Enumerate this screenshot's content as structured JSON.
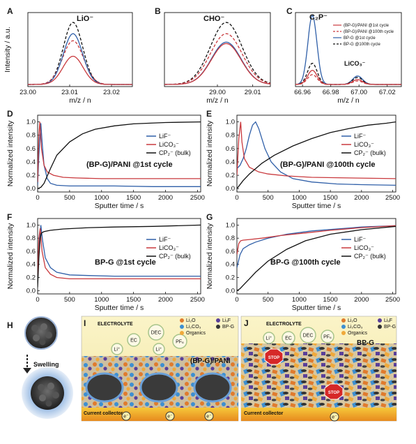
{
  "figure": {
    "panel_letters": [
      "A",
      "B",
      "C",
      "D",
      "E",
      "F",
      "G",
      "H",
      "I",
      "J"
    ]
  },
  "colors": {
    "red": "#c9393d",
    "blue": "#2f5fa8",
    "black": "#111111"
  },
  "chart_data": [
    {
      "id": "A",
      "type": "line",
      "xlabel": "m/z / n",
      "ylabel": "Intensity / a.u.",
      "xlim": [
        23.0,
        23.025
      ],
      "ylim": [
        0,
        1.05
      ],
      "xticks": [
        "23.00",
        "23.01",
        "23.02"
      ],
      "xtick_values": [
        23.0,
        23.01,
        23.02
      ],
      "annotation": "LiO⁻",
      "series": [
        {
          "color": "#111111",
          "dash": true,
          "center": 23.0108,
          "width": 0.0023,
          "peak": 0.88
        },
        {
          "color": "#c9393d",
          "dash": true,
          "center": 23.0108,
          "width": 0.0025,
          "peak": 0.62
        },
        {
          "color": "#2f5fa8",
          "dash": false,
          "center": 23.0108,
          "width": 0.0023,
          "peak": 0.72
        },
        {
          "color": "#c9393d",
          "dash": false,
          "center": 23.0108,
          "width": 0.0024,
          "peak": 0.4
        }
      ]
    },
    {
      "id": "B",
      "type": "line",
      "xlabel": "m/z / n",
      "ylabel": "",
      "xlim": [
        28.985,
        29.015
      ],
      "ylim": [
        0,
        1.05
      ],
      "xticks": [
        "29.00",
        "29.01"
      ],
      "xtick_values": [
        29.0,
        29.01
      ],
      "annotation": "CHO⁻",
      "series": [
        {
          "color": "#111111",
          "dash": true,
          "center": 29.0025,
          "width": 0.0045,
          "peak": 0.88
        },
        {
          "color": "#c9393d",
          "dash": true,
          "center": 29.0025,
          "width": 0.0045,
          "peak": 0.72
        },
        {
          "color": "#2f5fa8",
          "dash": false,
          "center": 29.0025,
          "width": 0.0042,
          "peak": 0.6
        },
        {
          "color": "#c9393d",
          "dash": false,
          "center": 29.0025,
          "width": 0.0042,
          "peak": 0.58
        }
      ]
    },
    {
      "id": "C",
      "type": "line",
      "xlabel": "m/z / n",
      "ylabel": "",
      "xlim": [
        66.955,
        67.03
      ],
      "ylim": [
        0,
        1.05
      ],
      "xticks": [
        "66.96",
        "66.98",
        "67.00",
        "67.02"
      ],
      "xtick_values": [
        66.96,
        66.98,
        67.0,
        67.02
      ],
      "annotation": "C₂P⁻",
      "annotation2": "LiCO₃⁻",
      "legend": [
        {
          "label": "(BP-G)/PANI @1st cycle",
          "color": "#c9393d",
          "dash": false
        },
        {
          "label": "(BP-G)/PANI @100th cycle",
          "color": "#c9393d",
          "dash": true
        },
        {
          "label": "BP-G @1st cycle",
          "color": "#2f5fa8",
          "dash": false
        },
        {
          "label": "BP-G @100th cycle",
          "color": "#111111",
          "dash": true
        }
      ],
      "series": [
        {
          "color": "#2f5fa8",
          "dash": false,
          "peaks": [
            [
              66.967,
              0.0032,
              0.98
            ],
            [
              66.999,
              0.0035,
              0.12
            ]
          ]
        },
        {
          "color": "#111111",
          "dash": true,
          "peaks": [
            [
              66.967,
              0.0034,
              0.3
            ],
            [
              66.999,
              0.0035,
              0.1
            ]
          ]
        },
        {
          "color": "#c9393d",
          "dash": false,
          "peaks": [
            [
              66.967,
              0.0034,
              0.2
            ],
            [
              66.999,
              0.0035,
              0.07
            ]
          ]
        },
        {
          "color": "#c9393d",
          "dash": true,
          "peaks": [
            [
              66.967,
              0.0034,
              0.14
            ],
            [
              66.999,
              0.0035,
              0.05
            ]
          ]
        }
      ]
    },
    {
      "id": "D",
      "type": "line",
      "xlabel": "Sputter time / s",
      "ylabel": "Normalized intensity",
      "xlim": [
        0,
        2550
      ],
      "ylim": [
        -0.05,
        1.1
      ],
      "xticks": [
        "0",
        "500",
        "1000",
        "1500",
        "2000",
        "2500"
      ],
      "xtick_values": [
        0,
        500,
        1000,
        1500,
        2000,
        2500
      ],
      "yticks": [
        "0.0",
        "0.2",
        "0.4",
        "0.6",
        "0.8",
        "1.0"
      ],
      "ytick_values": [
        0,
        0.2,
        0.4,
        0.6,
        0.8,
        1.0
      ],
      "annotation": "(BP-G)/PANI @1st cycle",
      "legend": [
        {
          "label": "LiF⁻",
          "color": "#2f5fa8"
        },
        {
          "label": "LiCO₃⁻",
          "color": "#c9393d"
        },
        {
          "label": "CP₂⁻ (bulk)",
          "color": "#111111"
        }
      ],
      "series": [
        {
          "name": "LiF⁻",
          "color": "#2f5fa8",
          "x": [
            0,
            20,
            50,
            70,
            100,
            150,
            200,
            300,
            500,
            800,
            1200,
            1800,
            2550
          ],
          "y": [
            0.05,
            0.5,
            0.98,
            0.7,
            0.35,
            0.15,
            0.08,
            0.05,
            0.04,
            0.04,
            0.04,
            0.03,
            0.03
          ]
        },
        {
          "name": "LiCO₃⁻",
          "color": "#c9393d",
          "x": [
            0,
            20,
            35,
            60,
            100,
            150,
            250,
            400,
            600,
            1000,
            1500,
            2000,
            2550
          ],
          "y": [
            0.1,
            0.8,
            1.0,
            0.6,
            0.35,
            0.25,
            0.2,
            0.17,
            0.16,
            0.15,
            0.15,
            0.15,
            0.15
          ]
        },
        {
          "name": "CP₂⁻ (bulk)",
          "color": "#111111",
          "x": [
            0,
            50,
            100,
            200,
            300,
            500,
            700,
            900,
            1200,
            1500,
            2000,
            2550
          ],
          "y": [
            0.0,
            0.02,
            0.08,
            0.3,
            0.5,
            0.7,
            0.82,
            0.89,
            0.94,
            0.97,
            0.99,
            1.0
          ]
        }
      ]
    },
    {
      "id": "E",
      "type": "line",
      "xlabel": "Sputter time / s",
      "ylabel": "Normalized intensity",
      "xlim": [
        0,
        2550
      ],
      "ylim": [
        -0.05,
        1.1
      ],
      "xticks": [
        "0",
        "500",
        "1000",
        "1500",
        "2000",
        "2500"
      ],
      "xtick_values": [
        0,
        500,
        1000,
        1500,
        2000,
        2500
      ],
      "yticks": [
        "0.0",
        "0.2",
        "0.4",
        "0.6",
        "0.8",
        "1.0"
      ],
      "ytick_values": [
        0,
        0.2,
        0.4,
        0.6,
        0.8,
        1.0
      ],
      "annotation": "(BP-G)/PANI @100th cycle",
      "legend": [
        {
          "label": "LiF⁻",
          "color": "#2f5fa8"
        },
        {
          "label": "LiCO₃⁻",
          "color": "#c9393d"
        },
        {
          "label": "CP₂⁻ (bulk)",
          "color": "#111111"
        }
      ],
      "series": [
        {
          "name": "LiF⁻",
          "color": "#2f5fa8",
          "x": [
            0,
            50,
            100,
            150,
            200,
            250,
            300,
            350,
            450,
            550,
            700,
            900,
            1200,
            1600,
            2000,
            2550
          ],
          "y": [
            0.3,
            0.35,
            0.45,
            0.6,
            0.8,
            0.95,
            1.0,
            0.9,
            0.6,
            0.4,
            0.25,
            0.15,
            0.1,
            0.07,
            0.06,
            0.05
          ]
        },
        {
          "name": "LiCO₃⁻",
          "color": "#c9393d",
          "x": [
            0,
            30,
            60,
            80,
            120,
            200,
            350,
            500,
            800,
            1200,
            1800,
            2550
          ],
          "y": [
            0.2,
            0.75,
            1.0,
            0.7,
            0.45,
            0.32,
            0.25,
            0.22,
            0.19,
            0.17,
            0.16,
            0.15
          ]
        },
        {
          "name": "CP₂⁻ (bulk)",
          "color": "#111111",
          "x": [
            0,
            100,
            200,
            400,
            600,
            900,
            1200,
            1500,
            1800,
            2100,
            2400,
            2550
          ],
          "y": [
            0.0,
            0.12,
            0.22,
            0.38,
            0.5,
            0.64,
            0.75,
            0.84,
            0.9,
            0.95,
            0.98,
            1.0
          ]
        }
      ]
    },
    {
      "id": "F",
      "type": "line",
      "xlabel": "Sputter time / s",
      "ylabel": "Normalized intensity",
      "xlim": [
        0,
        2550
      ],
      "ylim": [
        -0.05,
        1.1
      ],
      "xticks": [
        "0",
        "500",
        "1000",
        "1500",
        "2000",
        "2500"
      ],
      "xtick_values": [
        0,
        500,
        1000,
        1500,
        2000,
        2500
      ],
      "yticks": [
        "0.0",
        "0.2",
        "0.4",
        "0.6",
        "0.8",
        "1.0"
      ],
      "ytick_values": [
        0,
        0.2,
        0.4,
        0.6,
        0.8,
        1.0
      ],
      "annotation": "BP-G @1st cycle",
      "legend": [
        {
          "label": "LiF⁻",
          "color": "#2f5fa8"
        },
        {
          "label": "LiCO₃⁻",
          "color": "#c9393d"
        },
        {
          "label": "CP₂⁻ (bulk)",
          "color": "#111111"
        }
      ],
      "series": [
        {
          "name": "LiF⁻",
          "color": "#2f5fa8",
          "x": [
            0,
            20,
            50,
            80,
            120,
            200,
            300,
            500,
            800,
            1200,
            1800,
            2550
          ],
          "y": [
            0.15,
            0.6,
            1.0,
            0.75,
            0.5,
            0.35,
            0.28,
            0.24,
            0.23,
            0.22,
            0.22,
            0.22
          ]
        },
        {
          "name": "LiCO₃⁻",
          "color": "#c9393d",
          "x": [
            0,
            20,
            40,
            70,
            120,
            200,
            300,
            500,
            800,
            1200,
            1800,
            2550
          ],
          "y": [
            0.2,
            0.8,
            0.95,
            0.6,
            0.35,
            0.25,
            0.2,
            0.18,
            0.18,
            0.18,
            0.18,
            0.18
          ]
        },
        {
          "name": "CP₂⁻ (bulk)",
          "color": "#111111",
          "x": [
            0,
            20,
            40,
            60,
            100,
            200,
            400,
            800,
            1200,
            1800,
            2550
          ],
          "y": [
            0.05,
            0.5,
            0.8,
            0.88,
            0.9,
            0.92,
            0.94,
            0.96,
            0.97,
            0.98,
            1.0
          ]
        }
      ]
    },
    {
      "id": "G",
      "type": "line",
      "xlabel": "Sputter time / s",
      "ylabel": "Normalized intensity",
      "xlim": [
        0,
        2550
      ],
      "ylim": [
        -0.05,
        1.1
      ],
      "xticks": [
        "0",
        "500",
        "1000",
        "1500",
        "2000",
        "2500"
      ],
      "xtick_values": [
        0,
        500,
        1000,
        1500,
        2000,
        2500
      ],
      "yticks": [
        "0.0",
        "0.2",
        "0.4",
        "0.6",
        "0.8",
        "1.0"
      ],
      "ytick_values": [
        0,
        0.2,
        0.4,
        0.6,
        0.8,
        1.0
      ],
      "annotation": "BP-G @100th cycle",
      "legend": [
        {
          "label": "LiF⁻",
          "color": "#2f5fa8"
        },
        {
          "label": "LiCO₃⁻",
          "color": "#c9393d"
        },
        {
          "label": "CP₂⁻ (bulk)",
          "color": "#111111"
        }
      ],
      "series": [
        {
          "name": "LiF⁻",
          "color": "#2f5fa8",
          "x": [
            0,
            50,
            100,
            200,
            300,
            500,
            800,
            1200,
            1600,
            2000,
            2550
          ],
          "y": [
            0.35,
            0.55,
            0.64,
            0.7,
            0.74,
            0.8,
            0.86,
            0.91,
            0.94,
            0.97,
            0.99
          ]
        },
        {
          "name": "LiCO₃⁻",
          "color": "#c9393d",
          "x": [
            0,
            30,
            60,
            100,
            200,
            400,
            700,
            1100,
            1500,
            2000,
            2550
          ],
          "y": [
            0.55,
            0.72,
            0.76,
            0.77,
            0.78,
            0.8,
            0.84,
            0.88,
            0.92,
            0.96,
            0.99
          ]
        },
        {
          "name": "CP₂⁻ (bulk)",
          "color": "#111111",
          "x": [
            0,
            50,
            100,
            200,
            300,
            500,
            800,
            1100,
            1500,
            2000,
            2550
          ],
          "y": [
            0.0,
            0.03,
            0.08,
            0.18,
            0.28,
            0.45,
            0.63,
            0.76,
            0.86,
            0.93,
            0.98
          ]
        }
      ]
    }
  ],
  "schematics": {
    "H": {
      "label": "Swelling"
    },
    "I": {
      "title": "ELECTROLYTE",
      "material": "(BP-G)/PANI",
      "bubbles": [
        "Li⁺",
        "EC",
        "DEC",
        "Li⁺",
        "PF₆"
      ],
      "legend": [
        {
          "label": "Li₂O",
          "color": "#e07b2d"
        },
        {
          "label": "LiₓF",
          "color": "#5a3f9a"
        },
        {
          "label": "Li₂CO₃",
          "color": "#3d8fd1"
        },
        {
          "label": "BP-G",
          "color": "#333333"
        },
        {
          "label": "Organics",
          "color": "#f0a93b"
        }
      ],
      "collector": "Current collector",
      "electron": "e⁻"
    },
    "J": {
      "title": "ELECTROLYTE",
      "material": "BP-G",
      "bubbles": [
        "Li⁺",
        "EC",
        "DEC",
        "PF₆"
      ],
      "stop": "STOP",
      "legend": [
        {
          "label": "Li₂O",
          "color": "#e07b2d"
        },
        {
          "label": "LiₓF",
          "color": "#5a3f9a"
        },
        {
          "label": "Li₂CO₃",
          "color": "#3d8fd1"
        },
        {
          "label": "BP-G",
          "color": "#333333"
        },
        {
          "label": "Organics",
          "color": "#f0a93b"
        }
      ],
      "collector": "Current collector",
      "electron": "e⁻"
    }
  }
}
